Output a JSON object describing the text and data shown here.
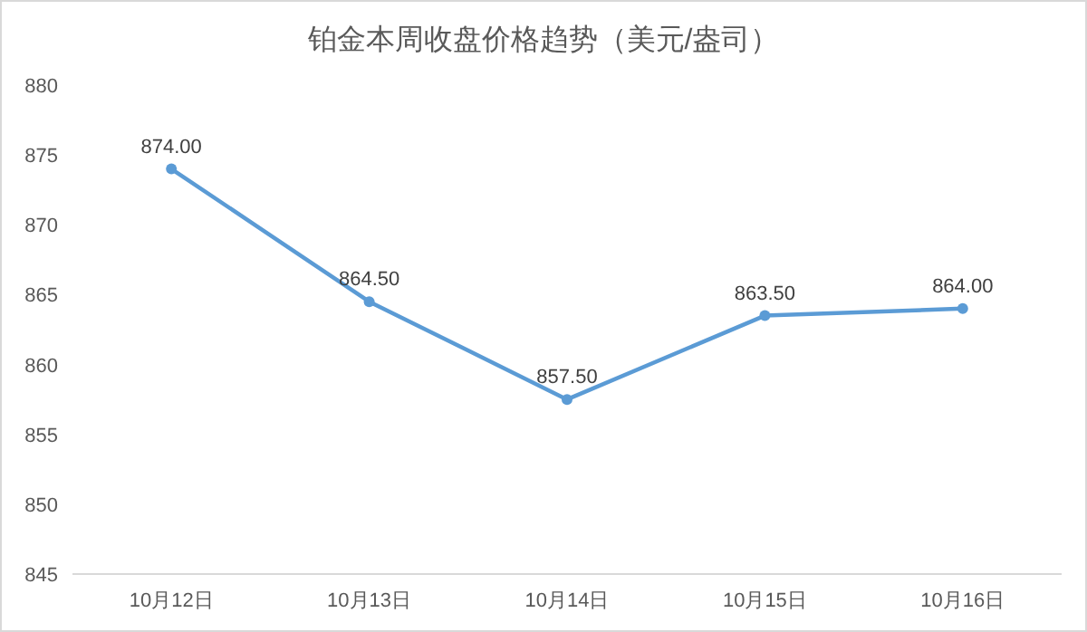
{
  "chart_data": {
    "type": "line",
    "title": "铂金本周收盘价格趋势（美元/盎司）",
    "categories": [
      "10月12日",
      "10月13日",
      "10月14日",
      "10月15日",
      "10月16日"
    ],
    "series": [
      {
        "color": "#5b9bd5",
        "values": [
          874.0,
          864.5,
          857.5,
          863.5,
          864.0
        ],
        "value_labels": [
          "874.00",
          "864.50",
          "857.50",
          "863.50",
          "864.00"
        ]
      }
    ],
    "ylim": [
      845,
      880
    ],
    "yticks": [
      845,
      850,
      855,
      860,
      865,
      870,
      875,
      880
    ],
    "marker": "circle",
    "line_style": "solid",
    "grid": false
  }
}
